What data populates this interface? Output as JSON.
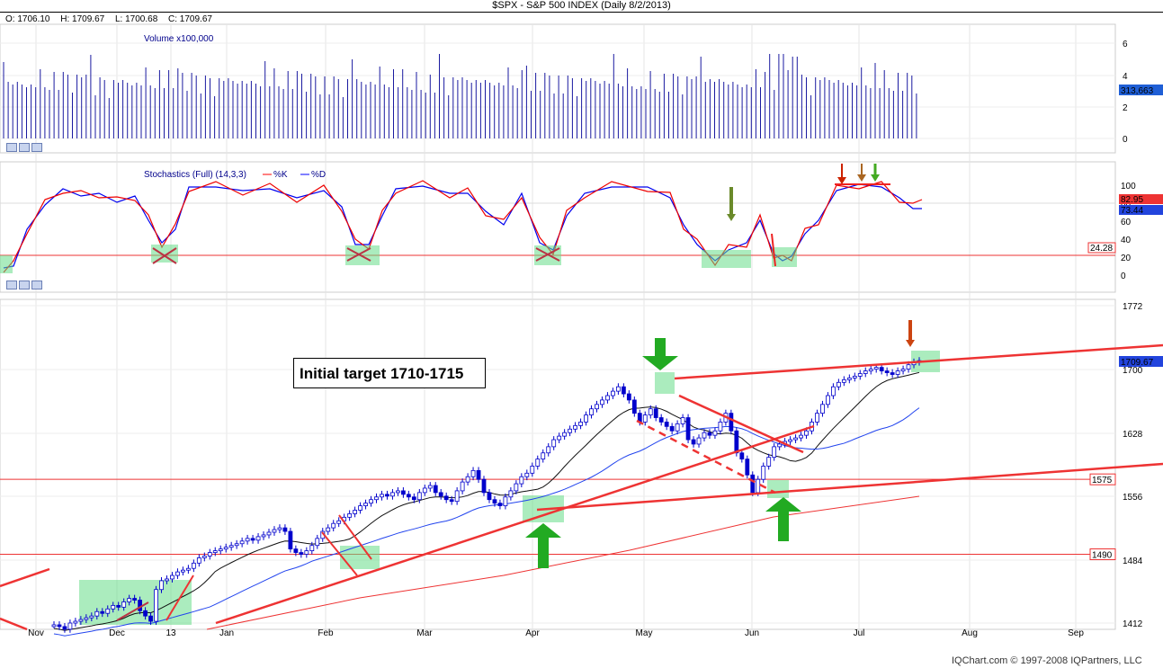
{
  "header": {
    "title": "$SPX - S&P 500 INDEX (Daily 8/2/2013)",
    "open": "O: 1706.10",
    "high": "H: 1709.67",
    "low": "L: 1700.68",
    "close": "C: 1709.67"
  },
  "colors": {
    "price_bg": "#ffffff",
    "grid": "#e4e4e4",
    "up": "#0000cc",
    "red": "#ff0000",
    "green_box": "#66dd88",
    "arrow_green": "#22aa22",
    "arrow_red": "#cc3300"
  },
  "volume_panel": {
    "label": "Volume x100,000",
    "y_ticks": [
      "6",
      "4",
      "2",
      "0"
    ],
    "last_value": "313,663"
  },
  "stoch_panel": {
    "label": "Stochastics (Full) (14,3,3)",
    "k_label": "%K",
    "d_label": "%D",
    "y_ticks": [
      "100",
      "80",
      "60",
      "40",
      "20",
      "0"
    ],
    "k_value": "82.95",
    "d_value": "73.44",
    "level_value": "24.28"
  },
  "price_panel": {
    "y_ticks": [
      "1772",
      "1700",
      "1628",
      "1556",
      "1484",
      "1412"
    ],
    "last_value": "1709.67",
    "level_1575": "1575",
    "level_1490": "1490",
    "annotation": "Initial target 1710-1715"
  },
  "x_axis": {
    "months": [
      "Nov",
      "Dec",
      "13",
      "Jan",
      "Feb",
      "Mar",
      "Apr",
      "May",
      "Jun",
      "Jul",
      "Aug",
      "Sep"
    ]
  },
  "footer": {
    "credit": "IQChart.com © 1997-2008 IQPartners, LLC"
  },
  "chart_data": {
    "type": "candlestick",
    "title": "$SPX - S&P 500 INDEX (Daily 8/2/2013)",
    "ylim": [
      1412,
      1772
    ],
    "closes": [
      1410,
      1408,
      1405,
      1412,
      1414,
      1416,
      1418,
      1420,
      1425,
      1423,
      1428,
      1432,
      1430,
      1436,
      1440,
      1438,
      1426,
      1420,
      1414,
      1450,
      1460,
      1462,
      1466,
      1470,
      1472,
      1474,
      1480,
      1486,
      1488,
      1492,
      1494,
      1496,
      1498,
      1500,
      1502,
      1505,
      1508,
      1506,
      1510,
      1512,
      1515,
      1518,
      1520,
      1516,
      1496,
      1492,
      1490,
      1494,
      1500,
      1508,
      1516,
      1520,
      1525,
      1528,
      1532,
      1536,
      1540,
      1545,
      1548,
      1552,
      1555,
      1558,
      1556,
      1560,
      1562,
      1558,
      1555,
      1552,
      1560,
      1565,
      1568,
      1560,
      1556,
      1552,
      1550,
      1562,
      1572,
      1578,
      1585,
      1575,
      1560,
      1552,
      1548,
      1545,
      1555,
      1562,
      1570,
      1578,
      1582,
      1590,
      1598,
      1605,
      1612,
      1620,
      1624,
      1628,
      1632,
      1636,
      1640,
      1648,
      1655,
      1660,
      1665,
      1670,
      1675,
      1680,
      1672,
      1665,
      1650,
      1640,
      1648,
      1655,
      1645,
      1640,
      1635,
      1630,
      1638,
      1645,
      1620,
      1615,
      1622,
      1628,
      1625,
      1630,
      1640,
      1650,
      1630,
      1605,
      1598,
      1580,
      1560,
      1575,
      1590,
      1600,
      1612,
      1615,
      1618,
      1620,
      1622,
      1625,
      1630,
      1640,
      1650,
      1660,
      1670,
      1680,
      1685,
      1688,
      1690,
      1692,
      1695,
      1698,
      1700,
      1702,
      1698,
      1696,
      1694,
      1698,
      1700,
      1705,
      1708,
      1709.67
    ],
    "horizontal_levels": [
      1575,
      1490
    ]
  }
}
